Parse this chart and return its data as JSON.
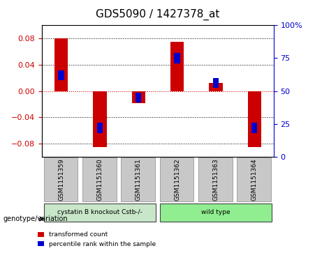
{
  "title": "GDS5090 / 1427378_at",
  "samples": [
    "GSM1151359",
    "GSM1151360",
    "GSM1151361",
    "GSM1151362",
    "GSM1151363",
    "GSM1151364"
  ],
  "transformed_counts": [
    0.08,
    -0.085,
    -0.018,
    0.075,
    0.012,
    -0.085
  ],
  "percentile_ranks": [
    62,
    22,
    45,
    75,
    56,
    22
  ],
  "groups": [
    {
      "label": "cystatin B knockout Cstb-/-",
      "samples": [
        0,
        1,
        2
      ],
      "color": "#90EE90"
    },
    {
      "label": "wild type",
      "samples": [
        3,
        4,
        5
      ],
      "color": "#90EE90"
    }
  ],
  "ylim_left": [
    -0.1,
    0.1
  ],
  "ylim_right": [
    0,
    100
  ],
  "yticks_left": [
    -0.08,
    -0.04,
    0,
    0.04,
    0.08
  ],
  "yticks_right": [
    0,
    25,
    50,
    75,
    100
  ],
  "bar_color_red": "#CC0000",
  "bar_color_blue": "#0000CC",
  "bar_width": 0.35,
  "blue_bar_width": 0.15,
  "group1_color": "#c8e6c8",
  "group2_color": "#90EE90",
  "sample_box_color": "#C8C8C8",
  "left_axis_color": "#CC0000",
  "right_axis_color": "#0000CC",
  "grid_color": "#000000",
  "zero_line_color": "#CC0000",
  "figsize": [
    4.61,
    3.63
  ],
  "dpi": 100
}
